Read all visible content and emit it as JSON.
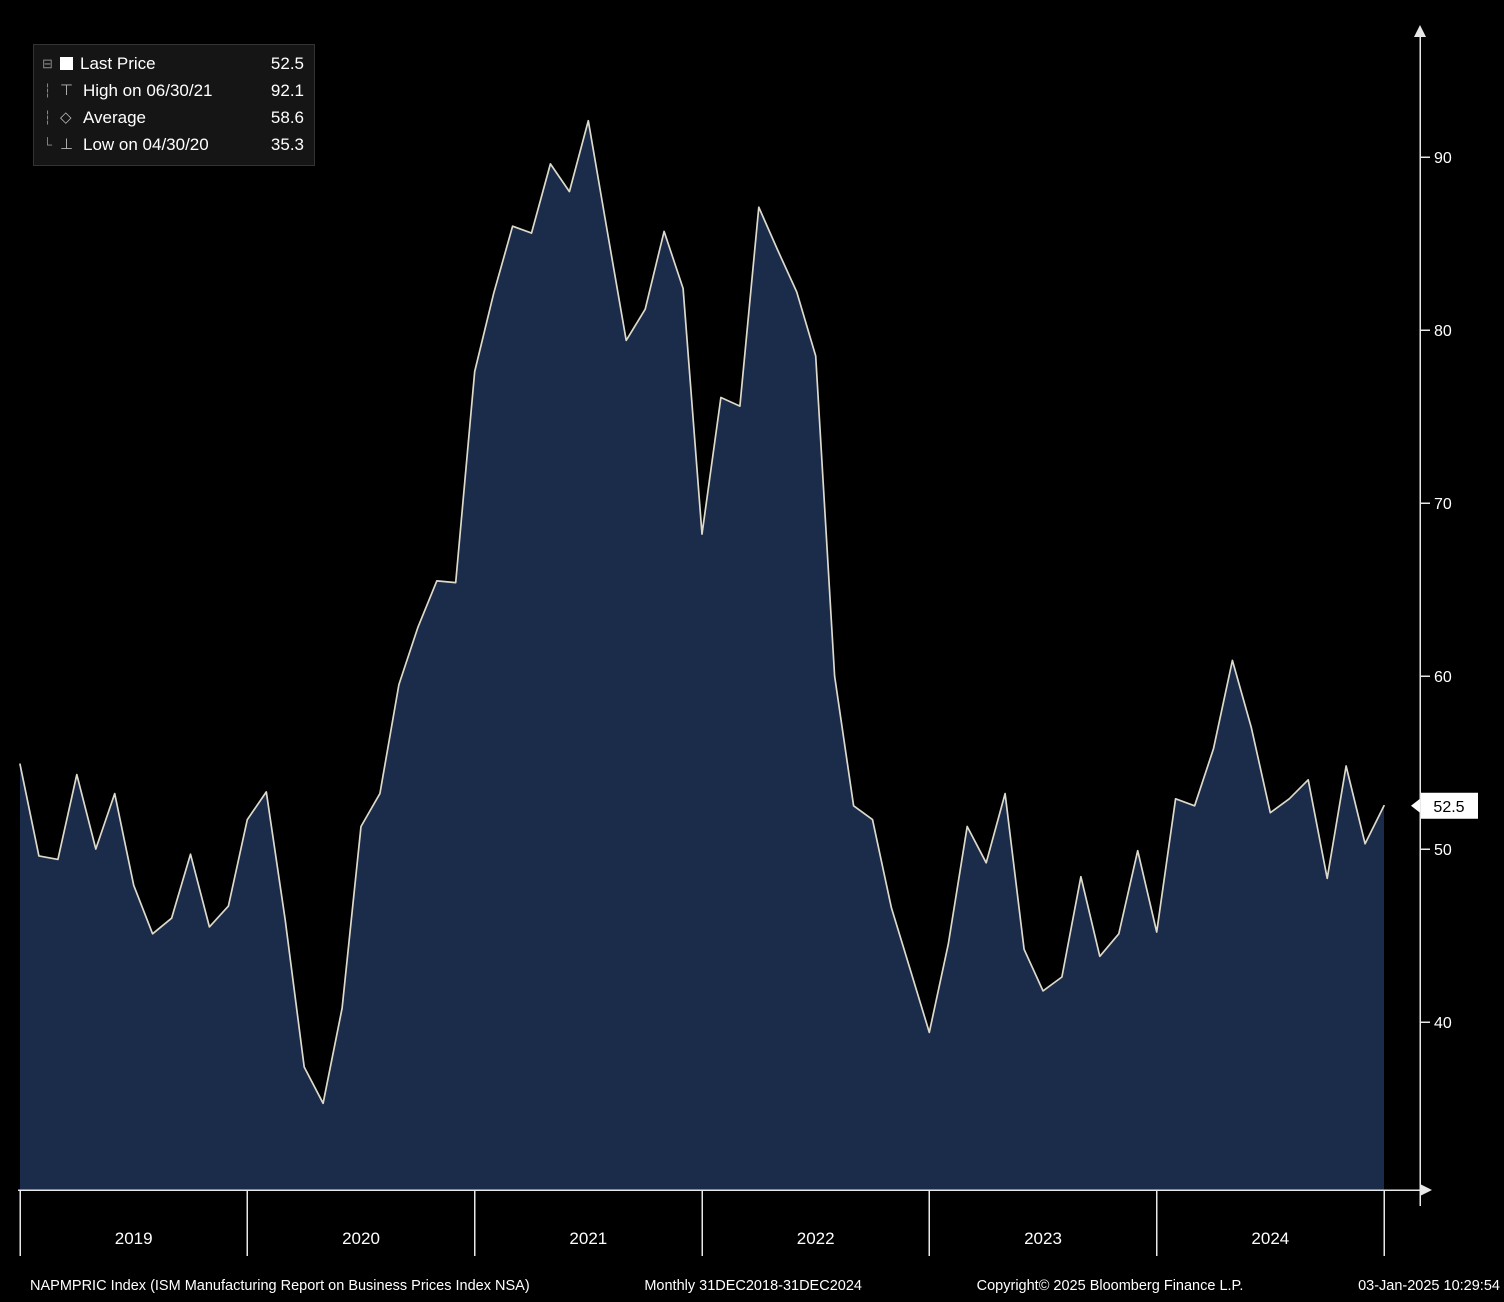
{
  "colors": {
    "background": "#000000",
    "area_fill": "#1b2b4a",
    "line": "#ddd9cb",
    "axis": "#e8e8e8",
    "text": "#ffffff",
    "last_price_box_bg": "#ffffff",
    "last_price_box_text": "#000000"
  },
  "legend": {
    "tree_glyphs": [
      "⊟",
      "┆",
      "┆",
      "└"
    ],
    "rows": [
      {
        "icon": "last-price-swatch",
        "icon_glyph": "",
        "label": "Last Price",
        "value": "52.5"
      },
      {
        "icon": "high-marker-icon",
        "icon_glyph": "⊤",
        "label": "High on 06/30/21",
        "value": "92.1"
      },
      {
        "icon": "average-marker-icon",
        "icon_glyph": "◇",
        "label": "Average",
        "value": "58.6"
      },
      {
        "icon": "low-marker-icon",
        "icon_glyph": "⊥",
        "label": "Low on 04/30/20",
        "value": "35.3"
      }
    ]
  },
  "y_axis": {
    "ticks": [
      40,
      50,
      60,
      70,
      80,
      90
    ],
    "last_price_label": "52.5"
  },
  "x_axis": {
    "year_labels": [
      "2019",
      "2020",
      "2021",
      "2022",
      "2023",
      "2024"
    ]
  },
  "status_bar": {
    "segments": [
      "NAPMPRIC Index (ISM Manufacturing Report on Business Prices Index NSA)",
      "Monthly 31DEC2018-31DEC2024",
      "Copyright© 2025 Bloomberg Finance L.P.",
      "03-Jan-2025 10:29:54"
    ]
  },
  "chart_data": {
    "type": "area",
    "title": "NAPMPRIC Index (ISM Manufacturing Report on Business Prices Index NSA)",
    "frequency": "monthly",
    "range": "31DEC2018-31DEC2024",
    "ylim": [
      33,
      95
    ],
    "y_ticks": [
      40,
      50,
      60,
      70,
      80,
      90
    ],
    "legend_position": "top-left",
    "grid": false,
    "last_price": 52.5,
    "high": {
      "date": "06/30/21",
      "value": 92.1
    },
    "average": 58.6,
    "low": {
      "date": "04/30/20",
      "value": 35.3
    },
    "x": [
      "2018-12",
      "2019-01",
      "2019-02",
      "2019-03",
      "2019-04",
      "2019-05",
      "2019-06",
      "2019-07",
      "2019-08",
      "2019-09",
      "2019-10",
      "2019-11",
      "2019-12",
      "2020-01",
      "2020-02",
      "2020-03",
      "2020-04",
      "2020-05",
      "2020-06",
      "2020-07",
      "2020-08",
      "2020-09",
      "2020-10",
      "2020-11",
      "2020-12",
      "2021-01",
      "2021-02",
      "2021-03",
      "2021-04",
      "2021-05",
      "2021-06",
      "2021-07",
      "2021-08",
      "2021-09",
      "2021-10",
      "2021-11",
      "2021-12",
      "2022-01",
      "2022-02",
      "2022-03",
      "2022-04",
      "2022-05",
      "2022-06",
      "2022-07",
      "2022-08",
      "2022-09",
      "2022-10",
      "2022-11",
      "2022-12",
      "2023-01",
      "2023-02",
      "2023-03",
      "2023-04",
      "2023-05",
      "2023-06",
      "2023-07",
      "2023-08",
      "2023-09",
      "2023-10",
      "2023-11",
      "2023-12",
      "2024-01",
      "2024-02",
      "2024-03",
      "2024-04",
      "2024-05",
      "2024-06",
      "2024-07",
      "2024-08",
      "2024-09",
      "2024-10",
      "2024-11",
      "2024-12"
    ],
    "values": [
      54.9,
      49.6,
      49.4,
      54.3,
      50.0,
      53.2,
      47.9,
      45.1,
      46.0,
      49.7,
      45.5,
      46.7,
      51.7,
      53.3,
      45.9,
      37.4,
      35.3,
      40.8,
      51.3,
      53.2,
      59.5,
      62.8,
      65.5,
      65.4,
      77.6,
      82.1,
      86.0,
      85.6,
      89.6,
      88.0,
      92.1,
      85.7,
      79.4,
      81.2,
      85.7,
      82.4,
      68.2,
      76.1,
      75.6,
      87.1,
      84.6,
      82.2,
      78.5,
      60.0,
      52.5,
      51.7,
      46.6,
      43.0,
      39.4,
      44.5,
      51.3,
      49.2,
      53.2,
      44.2,
      41.8,
      42.6,
      48.4,
      43.8,
      45.1,
      49.9,
      45.2,
      52.9,
      52.5,
      55.8,
      60.9,
      57.0,
      52.1,
      52.9,
      54.0,
      48.3,
      54.8,
      50.3,
      52.5
    ]
  }
}
